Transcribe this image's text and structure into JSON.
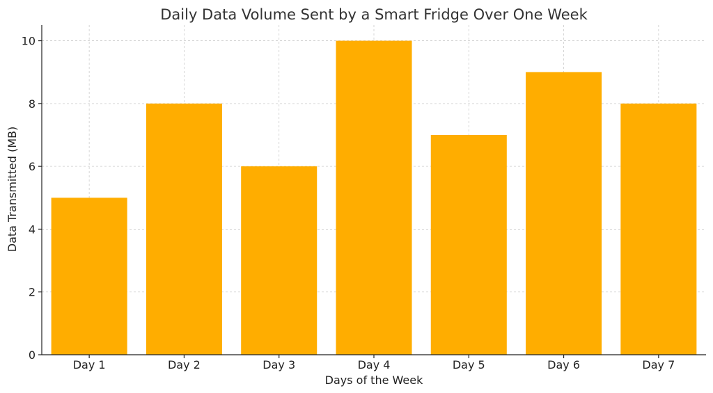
{
  "colors": {
    "bar": "#FFAD00",
    "grid": "#cccccc",
    "axis": "#222222",
    "title": "#333333"
  },
  "chart_data": {
    "type": "bar",
    "title": "Daily Data Volume Sent by a Smart Fridge Over One Week",
    "xlabel": "Days of the Week",
    "ylabel": "Data Transmitted (MB)",
    "categories": [
      "Day 1",
      "Day 2",
      "Day 3",
      "Day 4",
      "Day 5",
      "Day 6",
      "Day 7"
    ],
    "values": [
      5,
      8,
      6,
      10,
      7,
      9,
      8
    ],
    "ylim": [
      0,
      10.5
    ],
    "yticks": [
      0,
      2,
      4,
      6,
      8,
      10
    ],
    "grid": true
  }
}
